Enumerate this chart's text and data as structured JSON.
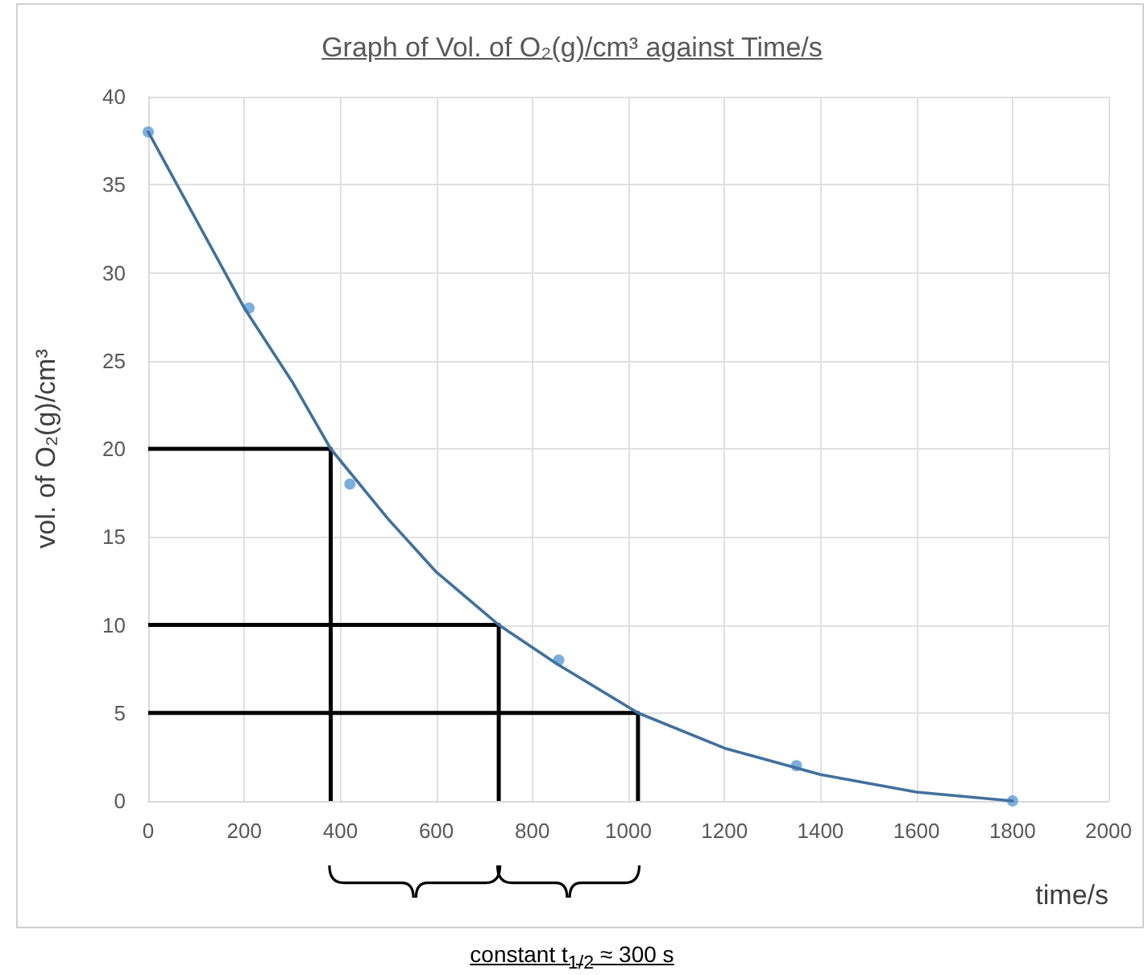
{
  "chart_data": {
    "type": "scatter",
    "title": "Graph of Vol. of O₂(g)/cm³ against Time/s",
    "xlabel": "time/s",
    "ylabel": "vol. of O₂(g)/cm³",
    "annotations": [
      "constant t$_{1/2}$ ≈ 300 s"
    ],
    "series": [
      {
        "x": [
          0,
          210,
          420,
          855,
          1350,
          1800
        ],
        "values": [
          38,
          28,
          18,
          8,
          2,
          0
        ],
        "color": "#5b9bd5",
        "marker": "circle"
      },
      {
        "type": "line",
        "x": [
          0,
          100,
          200,
          300,
          380,
          500,
          600,
          730,
          850,
          1020,
          1200,
          1400,
          1600,
          1800
        ],
        "values": [
          38,
          33,
          28,
          23.8,
          20,
          16,
          13,
          10,
          7.8,
          5,
          3,
          1.5,
          0.5,
          0
        ],
        "color": "#41719c",
        "marker": "none"
      },
      {
        "type": "line",
        "x": [
          0,
          380,
          380
        ],
        "values": [
          20,
          20,
          0
        ],
        "color": "#000000",
        "marker": "none"
      },
      {
        "type": "line",
        "x": [
          0,
          730,
          730
        ],
        "values": [
          10,
          10,
          0
        ],
        "color": "#000000",
        "marker": "none"
      },
      {
        "type": "line",
        "x": [
          0,
          1020,
          1020
        ],
        "values": [
          5,
          5,
          0
        ],
        "color": "#000000",
        "marker": "none"
      }
    ],
    "xlim": [
      0,
      2000
    ],
    "xticks": [
      0,
      200,
      400,
      600,
      800,
      1000,
      1200,
      1400,
      1600,
      1800,
      2000
    ],
    "ylim": [
      0,
      40
    ],
    "yticks": [
      0,
      5,
      10,
      15,
      20,
      25,
      30,
      35,
      40
    ],
    "grid": true
  }
}
